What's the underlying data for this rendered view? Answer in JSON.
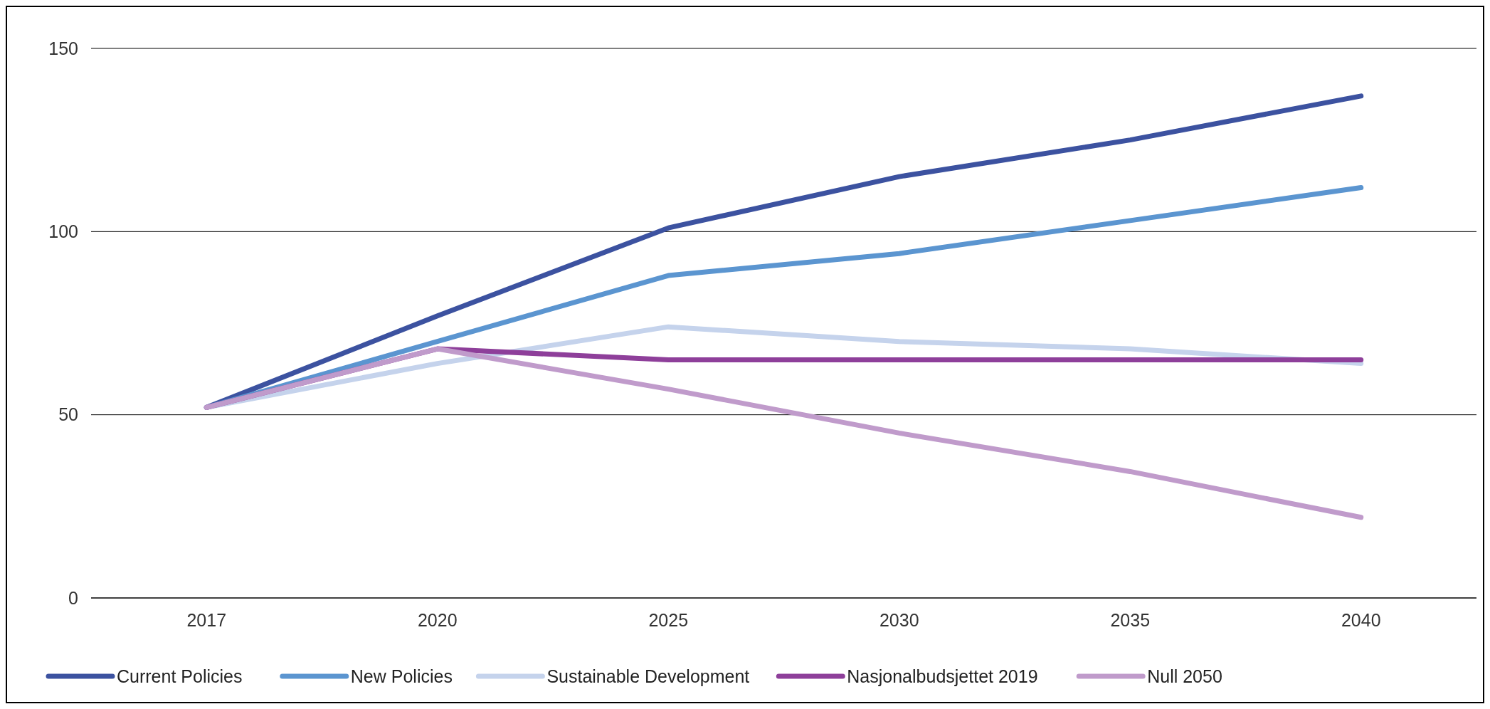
{
  "chart_data": {
    "type": "line",
    "categories": [
      "2017",
      "2020",
      "2025",
      "2030",
      "2035",
      "2040"
    ],
    "series": [
      {
        "name": "Current Policies",
        "color": "#3c52a0",
        "values": [
          52,
          77,
          101,
          115,
          125,
          137
        ]
      },
      {
        "name": "New Policies",
        "color": "#5b95d0",
        "values": [
          52,
          70,
          88,
          94,
          103,
          112
        ]
      },
      {
        "name": "Sustainable Development",
        "color": "#c5d3ec",
        "values": [
          52,
          64,
          74,
          70,
          68,
          64
        ]
      },
      {
        "name": "Nasjonalbudsjettet 2019",
        "color": "#8e3f9a",
        "values": [
          52,
          68,
          65,
          65,
          65,
          65
        ]
      },
      {
        "name": "Null 2050",
        "color": "#c09bcb",
        "values": [
          52,
          68,
          57,
          45,
          34.5,
          22
        ]
      }
    ],
    "ylim": [
      0,
      150
    ],
    "yticks": [
      0,
      50,
      100,
      150
    ],
    "grid": "y",
    "legend": "bottom",
    "marker": "none",
    "line_style": "solid"
  }
}
